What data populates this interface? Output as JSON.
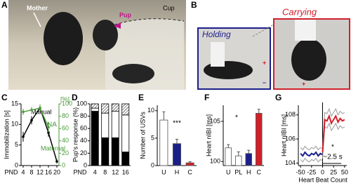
{
  "panels": {
    "A": {
      "label": "A",
      "mother": "Mother",
      "pup": "Pup",
      "cup": "Cup"
    },
    "B": {
      "label": "B",
      "holding": "Holding",
      "carrying": "Carrying",
      "plus": "+",
      "minus": "–"
    }
  },
  "chart_data": [
    {
      "label": "C",
      "type": "line",
      "markers": true,
      "xlabel": "PND",
      "ylabel": "Immobilization [s]",
      "y2label": "[%]",
      "x": [
        4,
        8,
        12,
        16,
        20
      ],
      "xlim": [
        3,
        21
      ],
      "xticks": [
        4,
        8,
        12,
        16,
        20
      ],
      "ylim": [
        0,
        15
      ],
      "yticks": [
        0,
        5,
        10,
        15
      ],
      "y2lim": [
        0,
        100
      ],
      "y2ticks": [
        0,
        20,
        40,
        60,
        80,
        100
      ],
      "series": [
        {
          "name": "Manual",
          "color": "#000000",
          "values": [
            7,
            11,
            14,
            8,
            1
          ],
          "errors": [
            1.2,
            1,
            0.8,
            1,
            0.5
          ]
        },
        {
          "name": "Maternal",
          "color": "#4a9a3a",
          "axis": "y2",
          "values": [
            87,
            90,
            93,
            62,
            null
          ],
          "errors": [
            5,
            5,
            6,
            8,
            null
          ]
        }
      ],
      "annotations": [
        "NA"
      ]
    },
    {
      "label": "D",
      "type": "stacked_bar",
      "xlabel": "PND",
      "ylabel": "Pup's response (%)",
      "categories": [
        "4",
        "8",
        "12",
        "16"
      ],
      "ylim": [
        0,
        100
      ],
      "yticks": [
        0,
        20,
        40,
        60,
        80,
        100
      ],
      "series": [
        {
          "color": "#000000",
          "values": [
            88,
            45,
            45,
            22
          ]
        },
        {
          "color": "#ffffff",
          "values": [
            5,
            40,
            43,
            60
          ]
        },
        {
          "color": "#ffffff",
          "hatch": true,
          "values": [
            7,
            15,
            12,
            18
          ]
        }
      ]
    },
    {
      "label": "E",
      "type": "bar",
      "ylabel": "Number of USVs",
      "categories": [
        "U",
        "H",
        "C"
      ],
      "values": [
        8.3,
        4,
        0.5
      ],
      "errors": [
        1.5,
        0.8,
        0.2
      ],
      "colors": [
        "#ffffff",
        "#1b1f8a",
        "#d0202a"
      ],
      "ylim": [
        0,
        11
      ],
      "yticks": [
        0,
        5,
        10
      ],
      "annotations": [
        "***"
      ]
    },
    {
      "label": "F",
      "type": "bar",
      "ylabel": "Heart nIBI [ms]",
      "categories": [
        "U",
        "PL",
        "H",
        "C"
      ],
      "values": [
        101.7,
        100.7,
        101,
        106
      ],
      "errors": [
        0.4,
        0.5,
        0.4,
        0.5
      ],
      "colors": [
        "#ffffff",
        "#ffffff",
        "#1b1f8a",
        "#d0202a"
      ],
      "ylim": [
        99.5,
        107
      ],
      "yticks": [
        100,
        105
      ],
      "annotations": [
        "*"
      ]
    },
    {
      "label": "G",
      "type": "line",
      "error_style": "band",
      "xlabel": "Heart Beat Count",
      "ylabel": "Heart nIBI [ms]",
      "x": [
        -50,
        -45,
        -40,
        -35,
        -30,
        -25,
        -20,
        -15,
        -10,
        -5,
        0,
        5,
        10,
        15,
        20,
        25,
        30,
        35,
        40,
        45,
        50
      ],
      "xlim": [
        -55,
        55
      ],
      "xticks": [
        -50,
        -25,
        0,
        25,
        50
      ],
      "ylim": [
        103.8,
        108.8
      ],
      "yticks": [
        104,
        106,
        108
      ],
      "series": [
        {
          "color": "#1b1f8a",
          "values": [
            104.8,
            104.6,
            104.9,
            104.7,
            104.6,
            104.8,
            104.7,
            104.9,
            104.6,
            104.8,
            104.7,
            null,
            null,
            null,
            null,
            null,
            null,
            null,
            null,
            null,
            null
          ],
          "errors": [
            0.5,
            0.5,
            0.5,
            0.5,
            0.5,
            0.5,
            0.5,
            0.5,
            0.5,
            0.5,
            0.5,
            null,
            null,
            null,
            null,
            null,
            null,
            null,
            null,
            null,
            null
          ]
        },
        {
          "color": "#d0202a",
          "values": [
            null,
            null,
            null,
            null,
            null,
            null,
            null,
            null,
            null,
            null,
            104.9,
            107.6,
            107.5,
            107.9,
            107.3,
            107.6,
            107.9,
            107.4,
            107.7,
            107.5,
            107.6
          ],
          "errors": [
            null,
            null,
            null,
            null,
            null,
            null,
            null,
            null,
            null,
            null,
            0.5,
            0.6,
            0.6,
            0.6,
            0.6,
            0.6,
            0.6,
            0.6,
            0.6,
            0.6,
            0.6
          ]
        }
      ],
      "annotations": [
        "*",
        "~2.5 s"
      ]
    }
  ]
}
